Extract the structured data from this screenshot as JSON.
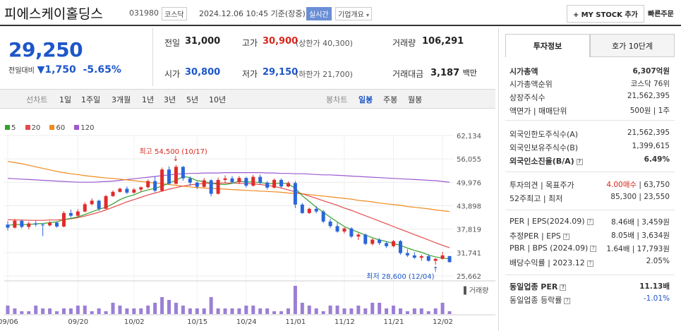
{
  "header": {
    "title": "피에스케이홀딩스",
    "code": "031980",
    "market": "코스닥",
    "timestamp": "2024.12.06 10:45 기준(장중)",
    "realtime": "실시간",
    "company_info": "기업개요",
    "my_stock_add": "MY STOCK 추가",
    "quick_order": "빠른주문"
  },
  "quote": {
    "price": "29,250",
    "change_label": "전일대비",
    "change_value": "1,750",
    "change_pct": "-5.65%",
    "prev_close_label": "전일",
    "prev_close": "31,000",
    "high_label": "고가",
    "high": "30,900",
    "upper_limit": "(상한가 40,300)",
    "volume_label": "거래량",
    "volume": "106,291",
    "open_label": "시가",
    "open": "30,800",
    "low_label": "저가",
    "low": "29,150",
    "lower_limit": "(하한가 21,700)",
    "amount_label": "거래대금",
    "amount": "3,187",
    "amount_unit": "백만"
  },
  "chart_tabs": {
    "line_chart": "선차트",
    "periods": [
      "1일",
      "1주일",
      "3개월",
      "1년",
      "3년",
      "5년",
      "10년"
    ],
    "candle_chart": "봉차트",
    "candle_periods": [
      "일봉",
      "주봉",
      "월봉"
    ],
    "selected": "일봉"
  },
  "right_panel": {
    "tabs": [
      "투자정보",
      "호가 10단계"
    ],
    "rows": [
      {
        "label": "시가총액",
        "value": "6,307억원",
        "bold": true
      },
      {
        "label": "시가총액순위",
        "value": "코스닥 76위"
      },
      {
        "label": "상장주식수",
        "value": "21,562,395"
      },
      {
        "label": "액면가 | 매매단위",
        "value": "500원 | 1주"
      },
      {
        "label": "외국인한도주식수(A)",
        "value": "21,562,395"
      },
      {
        "label": "외국인보유주식수(B)",
        "value": "1,399,615"
      },
      {
        "label": "외국인소진율(B/A)",
        "value": "6.49%",
        "bold": true
      },
      {
        "label": "투자의견 | 목표주가",
        "value_red": "4.00매수",
        "value": " | 63,750"
      },
      {
        "label": "52주최고 | 최저",
        "value": "85,300 | 23,550"
      },
      {
        "label": "PER | EPS(2024.09)",
        "value": "8.46배 | 3,459원"
      },
      {
        "label": "추정PER | EPS",
        "value": "8.05배 | 3,634원"
      },
      {
        "label": "PBR | BPS (2024.09)",
        "value": "1.64배 | 17,793원"
      },
      {
        "label": "배당수익률 | 2023.12",
        "value": "2.05%"
      },
      {
        "label": "동일업종 PER",
        "value": "11.13배",
        "bold": true
      },
      {
        "label": "동일업종 등락률",
        "value": "-1.01%",
        "blue": true
      }
    ]
  },
  "chart_data": {
    "type": "candlestick",
    "legend": [
      {
        "name": "5",
        "color": "#35a02c"
      },
      {
        "name": "20",
        "color": "#e44b4b"
      },
      {
        "name": "60",
        "color": "#f08a1c"
      },
      {
        "name": "120",
        "color": "#9b59d0"
      }
    ],
    "ylim": [
      25662,
      62134
    ],
    "y_ticks": [
      "62,134",
      "56,055",
      "49,976",
      "43,898",
      "37,819",
      "31,741",
      "25,662"
    ],
    "x_ticks": [
      "09/06",
      "09/20",
      "10/02",
      "10/15",
      "10/24",
      "11/01",
      "11/12",
      "11/21",
      "12/02"
    ],
    "high_annotation": "최고 54,500 (10/17)",
    "low_annotation": "최저 28,600 (12/04)",
    "volume_label": "거래량",
    "candles": [
      [
        39000,
        39900,
        37500,
        38200
      ],
      [
        38200,
        40500,
        38000,
        40000
      ],
      [
        40000,
        40200,
        38000,
        38400
      ],
      [
        38400,
        39800,
        37800,
        39300
      ],
      [
        39300,
        40000,
        38500,
        39000
      ],
      [
        39000,
        39400,
        36000,
        38800
      ],
      [
        38800,
        39900,
        38500,
        39500
      ],
      [
        39500,
        39800,
        38200,
        38500
      ],
      [
        38500,
        42500,
        38300,
        42000
      ],
      [
        42000,
        42900,
        40800,
        41300
      ],
      [
        41300,
        43000,
        41000,
        42400
      ],
      [
        42400,
        44800,
        42200,
        44300
      ],
      [
        44300,
        45800,
        44000,
        45200
      ],
      [
        45200,
        45500,
        42500,
        43100
      ],
      [
        43100,
        46700,
        43000,
        46400
      ],
      [
        46400,
        47900,
        46200,
        47500
      ],
      [
        47500,
        48600,
        47300,
        48300
      ],
      [
        48300,
        48900,
        46900,
        47300
      ],
      [
        47300,
        48500,
        47000,
        48100
      ],
      [
        48100,
        48900,
        47500,
        48700
      ],
      [
        48700,
        50700,
        48400,
        50300
      ],
      [
        50300,
        51500,
        47400,
        47800
      ],
      [
        47800,
        53800,
        47500,
        53300
      ],
      [
        53300,
        54100,
        49300,
        49600
      ],
      [
        49600,
        54500,
        49400,
        54000
      ],
      [
        54000,
        54200,
        50400,
        51000
      ],
      [
        51000,
        51500,
        49100,
        49900
      ],
      [
        49900,
        50200,
        48200,
        48800
      ],
      [
        48800,
        51100,
        48600,
        50500
      ],
      [
        50500,
        50800,
        46300,
        47000
      ],
      [
        47000,
        51200,
        46800,
        50600
      ],
      [
        50600,
        51800,
        49700,
        51000
      ],
      [
        51000,
        51600,
        49700,
        50000
      ],
      [
        50000,
        51600,
        49500,
        51100
      ],
      [
        51100,
        51400,
        48600,
        49100
      ],
      [
        49100,
        51900,
        48900,
        51400
      ],
      [
        51400,
        52000,
        49400,
        49900
      ],
      [
        49900,
        50300,
        48100,
        48600
      ],
      [
        48600,
        51000,
        48400,
        50600
      ],
      [
        50600,
        51000,
        48400,
        48900
      ],
      [
        48900,
        50200,
        48700,
        49800
      ],
      [
        49800,
        50300,
        43300,
        44200
      ],
      [
        44200,
        44600,
        41800,
        42000
      ],
      [
        42000,
        43400,
        41800,
        43100
      ],
      [
        43100,
        43800,
        41900,
        42400
      ],
      [
        42400,
        42800,
        39400,
        39800
      ],
      [
        39800,
        40500,
        38100,
        38600
      ],
      [
        38600,
        39500,
        36900,
        37200
      ],
      [
        37200,
        38300,
        36700,
        38000
      ],
      [
        38000,
        38300,
        35500,
        35900
      ],
      [
        35900,
        36800,
        35000,
        36400
      ],
      [
        36400,
        36700,
        33700,
        34000
      ],
      [
        34000,
        35400,
        33600,
        35100
      ],
      [
        35100,
        35500,
        33700,
        34200
      ],
      [
        34200,
        34600,
        32900,
        33400
      ],
      [
        33400,
        35000,
        33100,
        34700
      ],
      [
        34700,
        35000,
        31200,
        31600
      ],
      [
        31600,
        32600,
        30600,
        31000
      ],
      [
        31000,
        31800,
        30100,
        30400
      ],
      [
        30400,
        31200,
        29600,
        30800
      ],
      [
        30800,
        31300,
        29400,
        29600
      ],
      [
        29600,
        30300,
        28600,
        30100
      ],
      [
        30100,
        31900,
        29900,
        31000
      ],
      [
        30800,
        30900,
        29150,
        29250
      ]
    ],
    "ma5": [
      38800,
      39000,
      39000,
      39000,
      39200,
      39300,
      39500,
      39700,
      40300,
      40600,
      41000,
      41600,
      42300,
      43000,
      43500,
      44400,
      45500,
      46200,
      46700,
      47500,
      48000,
      48400,
      49000,
      49800,
      50500,
      51500,
      51200,
      50400,
      50200,
      49700,
      49500,
      49400,
      49700,
      50300,
      50100,
      50100,
      49900,
      49700,
      49600,
      49800,
      49600,
      48400,
      46500,
      45000,
      43500,
      42200,
      40900,
      39700,
      38500,
      37700,
      37000,
      36300,
      35600,
      35000,
      34600,
      34100,
      33600,
      32900,
      32300,
      31800,
      31100,
      30600,
      30300,
      30100
    ],
    "ma20": [
      40300,
      40200,
      40200,
      40100,
      40100,
      40100,
      40200,
      40200,
      40300,
      40500,
      40800,
      41200,
      41700,
      42200,
      42800,
      43500,
      44200,
      44900,
      45500,
      46100,
      46700,
      47200,
      47700,
      48200,
      48600,
      49000,
      49300,
      49500,
      49700,
      49700,
      49800,
      49800,
      49800,
      49700,
      49700,
      49600,
      49400,
      49200,
      48900,
      48500,
      48000,
      47500,
      47000,
      46400,
      45800,
      45200,
      44600,
      44000,
      43300,
      42700,
      42000,
      41300,
      40600,
      39900,
      39200,
      38500,
      37800,
      37100,
      36400,
      35700,
      35000,
      34300,
      33600,
      33000
    ],
    "ma60": [
      55400,
      55100,
      54800,
      54400,
      54000,
      53600,
      53200,
      52800,
      52500,
      52200,
      52000,
      51700,
      51500,
      51300,
      51100,
      51000,
      50800,
      50600,
      50400,
      50200,
      50000,
      49800,
      49600,
      49400,
      49200,
      49000,
      48800,
      48600,
      48500,
      48400,
      48300,
      48200,
      48100,
      48000,
      47900,
      47800,
      47700,
      47600,
      47500,
      47400,
      47200,
      47100,
      47000,
      46800,
      46600,
      46400,
      46200,
      46000,
      45800,
      45600,
      45300,
      45100,
      44900,
      44600,
      44400,
      44200,
      44000,
      43700,
      43500,
      43300,
      43100,
      42800,
      42600,
      42400
    ],
    "ma120": [
      51000,
      50900,
      50800,
      50700,
      50600,
      50500,
      50400,
      50300,
      50200,
      50100,
      50000,
      50000,
      50000,
      50100,
      50200,
      50300,
      50500,
      50700,
      50900,
      51100,
      51300,
      51500,
      51700,
      51900,
      52100,
      52200,
      52300,
      52300,
      52400,
      52400,
      52400,
      52500,
      52500,
      52500,
      52500,
      52500,
      52500,
      52400,
      52400,
      52300,
      52300,
      52200,
      52200,
      52100,
      52000,
      51900,
      51900,
      51800,
      51700,
      51600,
      51500,
      51400,
      51300,
      51200,
      51100,
      51000,
      50900,
      50800,
      50700,
      50600,
      50500,
      50400,
      50200,
      50000
    ],
    "volumes": [
      3,
      2,
      1,
      1,
      3,
      2,
      2,
      1,
      2,
      2,
      3,
      3,
      1,
      2,
      1,
      4,
      3,
      2,
      2,
      2,
      3,
      4,
      6,
      5,
      4,
      3,
      2,
      2,
      2,
      6,
      2,
      2,
      2,
      2,
      3,
      3,
      2,
      2,
      1,
      1,
      2,
      10,
      4,
      3,
      2,
      1,
      3,
      3,
      2,
      2,
      3,
      2,
      4,
      4,
      2,
      3,
      2,
      1,
      2,
      2,
      1,
      2,
      4,
      1
    ]
  }
}
